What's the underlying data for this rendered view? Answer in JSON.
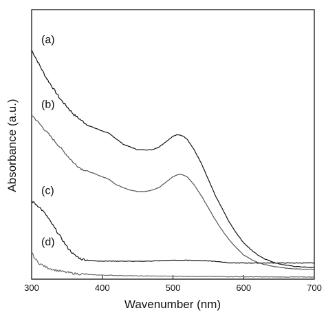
{
  "chart_data": {
    "type": "line",
    "xlabel": "Wavenumber (nm)",
    "ylabel": "Absorbance (a.u.)",
    "xlim": [
      300,
      700
    ],
    "ylim": [
      0,
      1
    ],
    "x_ticks": [
      300,
      400,
      500,
      600,
      700
    ],
    "y_ticks_shown": false,
    "grid": false,
    "legend": "none",
    "series": [
      {
        "name": "(a)",
        "color": "#111111",
        "x": [
          300,
          310,
          320,
          330,
          340,
          350,
          360,
          370,
          380,
          390,
          400,
          410,
          420,
          430,
          440,
          450,
          460,
          470,
          480,
          490,
          500,
          505,
          510,
          515,
          520,
          530,
          540,
          550,
          560,
          570,
          580,
          590,
          600,
          610,
          620,
          630,
          640,
          650,
          660,
          670,
          680,
          690,
          700
        ],
        "y": [
          0.85,
          0.8,
          0.75,
          0.71,
          0.67,
          0.64,
          0.61,
          0.59,
          0.57,
          0.56,
          0.55,
          0.54,
          0.52,
          0.5,
          0.49,
          0.48,
          0.48,
          0.48,
          0.49,
          0.51,
          0.53,
          0.535,
          0.535,
          0.53,
          0.52,
          0.48,
          0.43,
          0.37,
          0.31,
          0.26,
          0.21,
          0.17,
          0.135,
          0.11,
          0.09,
          0.075,
          0.065,
          0.057,
          0.052,
          0.048,
          0.046,
          0.044,
          0.043
        ]
      },
      {
        "name": "(b)",
        "color": "#555555",
        "x": [
          300,
          310,
          320,
          330,
          340,
          350,
          360,
          370,
          380,
          390,
          400,
          410,
          420,
          430,
          440,
          450,
          460,
          470,
          480,
          490,
          500,
          505,
          510,
          515,
          520,
          530,
          540,
          550,
          560,
          570,
          580,
          590,
          600,
          610,
          620,
          630,
          640,
          650,
          660,
          670,
          680,
          690,
          700
        ],
        "y": [
          0.61,
          0.58,
          0.55,
          0.52,
          0.49,
          0.46,
          0.43,
          0.41,
          0.4,
          0.39,
          0.38,
          0.37,
          0.35,
          0.34,
          0.33,
          0.325,
          0.325,
          0.33,
          0.34,
          0.36,
          0.38,
          0.385,
          0.39,
          0.385,
          0.38,
          0.35,
          0.31,
          0.265,
          0.22,
          0.18,
          0.145,
          0.115,
          0.09,
          0.074,
          0.062,
          0.054,
          0.048,
          0.044,
          0.041,
          0.039,
          0.038,
          0.037,
          0.036
        ]
      },
      {
        "name": "(c)",
        "color": "#111111",
        "x": [
          300,
          310,
          320,
          330,
          340,
          350,
          360,
          370,
          380,
          390,
          400,
          420,
          450,
          480,
          500,
          520,
          550,
          570,
          580,
          600,
          630,
          660,
          700
        ],
        "y": [
          0.29,
          0.27,
          0.24,
          0.2,
          0.16,
          0.12,
          0.09,
          0.075,
          0.07,
          0.068,
          0.067,
          0.067,
          0.066,
          0.068,
          0.07,
          0.07,
          0.068,
          0.064,
          0.06,
          0.06,
          0.06,
          0.06,
          0.06
        ]
      },
      {
        "name": "(d)",
        "color": "#666666",
        "x": [
          300,
          305,
          310,
          320,
          330,
          340,
          350,
          360,
          380,
          400,
          450,
          500,
          550,
          600,
          650,
          700
        ],
        "y": [
          0.1,
          0.075,
          0.06,
          0.045,
          0.036,
          0.03,
          0.025,
          0.021,
          0.017,
          0.015,
          0.012,
          0.011,
          0.01,
          0.009,
          0.008,
          0.008
        ]
      }
    ]
  }
}
